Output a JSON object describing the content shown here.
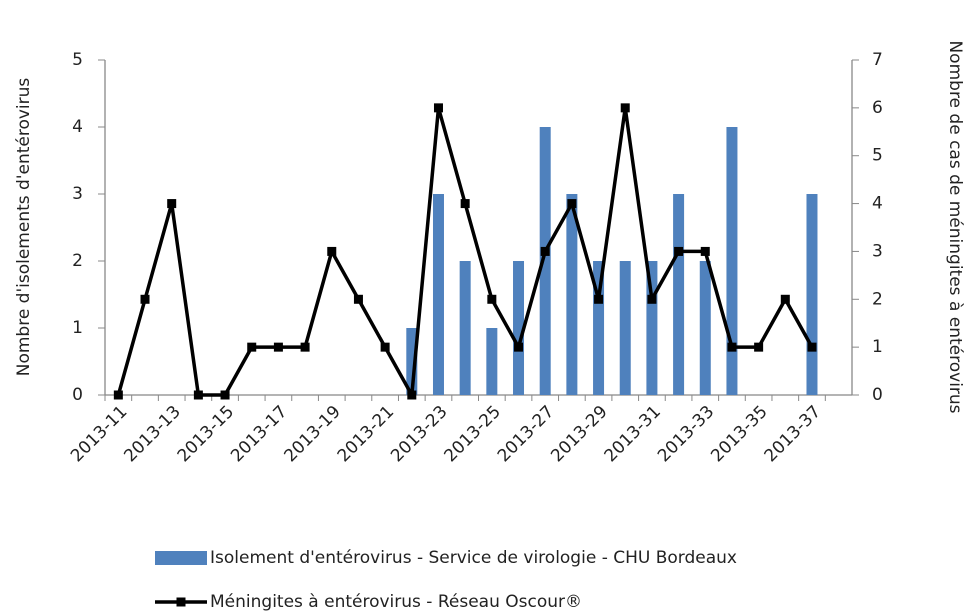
{
  "chart_data": {
    "type": "bar-line",
    "y_label": "Nombre d'isolements d'entérovirus",
    "y2_label": "Nombre de cas de méningites à entérovirus",
    "categories": [
      "2013-11",
      null,
      "2013-13",
      null,
      "2013-15",
      null,
      "2013-17",
      null,
      "2013-19",
      null,
      "2013-21",
      null,
      "2013-23",
      null,
      "2013-25",
      null,
      "2013-27",
      null,
      "2013-29",
      null,
      "2013-31",
      null,
      "2013-33",
      null,
      "2013-35",
      null,
      "2013-37",
      null
    ],
    "series": [
      {
        "name": "Isolement d'entérovirus - Service de virologie - CHU Bordeaux",
        "type": "bar",
        "color": "#4f81bd",
        "axis": "y",
        "values": [
          0,
          0,
          0,
          0,
          0,
          0,
          0,
          0,
          0,
          0,
          0,
          1,
          3,
          2,
          1,
          2,
          4,
          3,
          2,
          2,
          2,
          3,
          2,
          4,
          0,
          0,
          3,
          null
        ]
      },
      {
        "name": "Méningites à entérovirus - Réseau Oscour®",
        "type": "line",
        "color": "#000000",
        "axis": "y2",
        "values": [
          0,
          2,
          4,
          0,
          0,
          1,
          1,
          1,
          3,
          2,
          1,
          0,
          6,
          4,
          2,
          1,
          3,
          4,
          2,
          6,
          2,
          3,
          3,
          1,
          1,
          2,
          1,
          null
        ]
      }
    ],
    "ylim": [
      0,
      5
    ],
    "yticks": [
      0,
      1,
      2,
      3,
      4,
      5
    ],
    "y2lim": [
      0,
      7
    ],
    "y2ticks": [
      0,
      1,
      2,
      3,
      4,
      5,
      6,
      7
    ],
    "grid": false,
    "legend": "bottom"
  }
}
